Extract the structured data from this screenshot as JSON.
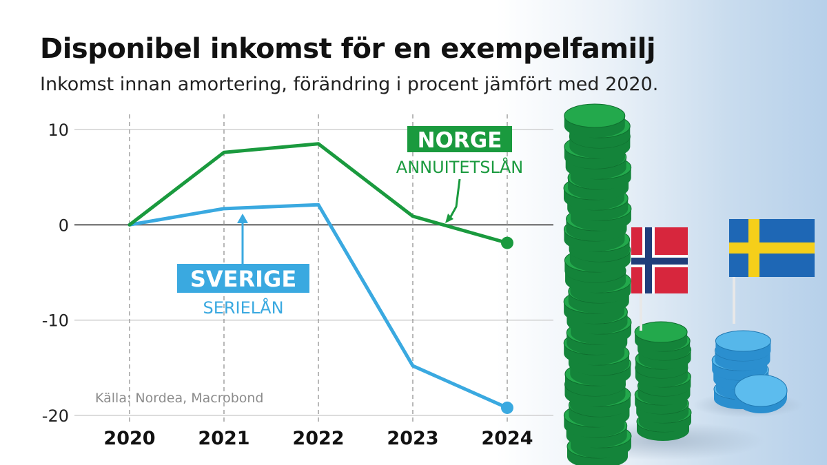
{
  "header": {
    "title": "Disponibel inkomst för en exempelfamilj",
    "subtitle": "Inkomst innan amortering, förändring i procent jämfört med 2020."
  },
  "source": "Källa: Nordea, Macrobond",
  "colors": {
    "norge": "#1a9a3e",
    "sverige": "#3aa9e0",
    "grid": "#c8c8c8",
    "zero_line": "#666666",
    "text": "#111111"
  },
  "illustration": {
    "description_icons": [
      "coin-stack-green-icon",
      "coin-stack-blue-icon",
      "norway-flag-icon",
      "sweden-flag-icon"
    ]
  },
  "chart_data": {
    "type": "line",
    "x": [
      "2020",
      "2021",
      "2022",
      "2023",
      "2024"
    ],
    "ylim": [
      -20,
      10
    ],
    "yticks": [
      10,
      0,
      -10,
      -20
    ],
    "ytick_labels": [
      "10",
      "0",
      "-10",
      "-20"
    ],
    "grid": true,
    "series": [
      {
        "name": "NORGE",
        "sublabel": "ANNUITETSLÅN",
        "color": "#1a9a3e",
        "values": [
          0,
          7.6,
          8.5,
          0.9,
          -1.9
        ]
      },
      {
        "name": "SVERIGE",
        "sublabel": "SERIELÅN",
        "color": "#3aa9e0",
        "values": [
          0,
          1.7,
          2.1,
          -14.8,
          -19.2
        ]
      }
    ]
  }
}
